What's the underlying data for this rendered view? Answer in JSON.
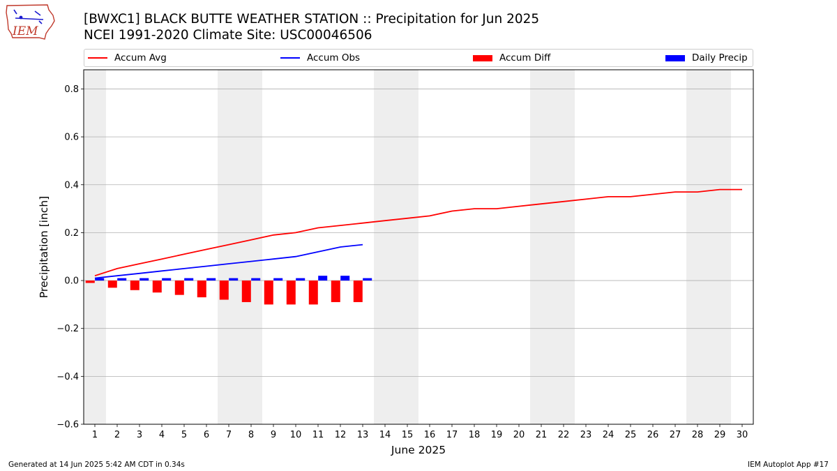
{
  "logo": {
    "text": "IEM"
  },
  "header": {
    "title": "[BWXC1] BLACK BUTTE WEATHER STATION :: Precipitation for Jun 2025",
    "subtitle": "NCEI 1991-2020 Climate Site: USC00046506"
  },
  "legend": {
    "items": [
      {
        "label": "Accum Avg",
        "color": "#ff0000",
        "kind": "line"
      },
      {
        "label": "Accum Obs",
        "color": "#0000ff",
        "kind": "line"
      },
      {
        "label": "Accum Diff",
        "color": "#ff0000",
        "kind": "bar"
      },
      {
        "label": "Daily Precip",
        "color": "#0000ff",
        "kind": "bar"
      }
    ]
  },
  "chart_data": {
    "type": "line",
    "xlabel": "June 2025",
    "ylabel": "Precipitation [inch]",
    "x": [
      1,
      2,
      3,
      4,
      5,
      6,
      7,
      8,
      9,
      10,
      11,
      12,
      13,
      14,
      15,
      16,
      17,
      18,
      19,
      20,
      21,
      22,
      23,
      24,
      25,
      26,
      27,
      28,
      29,
      30
    ],
    "xlim": [
      0.5,
      30.5
    ],
    "ylim": [
      -0.6,
      0.88
    ],
    "yticks": [
      -0.6,
      -0.4,
      -0.2,
      0.0,
      0.2,
      0.4,
      0.6,
      0.8
    ],
    "ytick_labels": [
      "−0.6",
      "−0.4",
      "−0.2",
      "0.0",
      "0.2",
      "0.4",
      "0.6",
      "0.8"
    ],
    "grid": "horizontal",
    "weekend_days": [
      1,
      7,
      8,
      14,
      15,
      21,
      22,
      28,
      29
    ],
    "series": [
      {
        "name": "Accum Avg",
        "kind": "line",
        "color": "#ff0000",
        "x": [
          1,
          2,
          3,
          4,
          5,
          6,
          7,
          8,
          9,
          10,
          11,
          12,
          13,
          14,
          15,
          16,
          17,
          18,
          19,
          20,
          21,
          22,
          23,
          24,
          25,
          26,
          27,
          28,
          29,
          30
        ],
        "values": [
          0.02,
          0.05,
          0.07,
          0.09,
          0.11,
          0.13,
          0.15,
          0.17,
          0.19,
          0.2,
          0.22,
          0.23,
          0.24,
          0.25,
          0.26,
          0.27,
          0.29,
          0.3,
          0.3,
          0.31,
          0.32,
          0.33,
          0.34,
          0.35,
          0.35,
          0.36,
          0.37,
          0.37,
          0.38,
          0.38
        ]
      },
      {
        "name": "Accum Obs",
        "kind": "line",
        "color": "#0000ff",
        "x": [
          1,
          2,
          3,
          4,
          5,
          6,
          7,
          8,
          9,
          10,
          11,
          12,
          13
        ],
        "values": [
          0.01,
          0.02,
          0.03,
          0.04,
          0.05,
          0.06,
          0.07,
          0.08,
          0.09,
          0.1,
          0.12,
          0.14,
          0.15
        ]
      },
      {
        "name": "Accum Diff",
        "kind": "bar",
        "color": "#ff0000",
        "x": [
          1,
          2,
          3,
          4,
          5,
          6,
          7,
          8,
          9,
          10,
          11,
          12,
          13
        ],
        "values": [
          -0.01,
          -0.03,
          -0.04,
          -0.05,
          -0.06,
          -0.07,
          -0.08,
          -0.09,
          -0.1,
          -0.1,
          -0.1,
          -0.09,
          -0.09
        ]
      },
      {
        "name": "Daily Precip",
        "kind": "bar",
        "color": "#0000ff",
        "x": [
          1,
          2,
          3,
          4,
          5,
          6,
          7,
          8,
          9,
          10,
          11,
          12,
          13
        ],
        "values": [
          0.01,
          0.01,
          0.01,
          0.01,
          0.01,
          0.01,
          0.01,
          0.01,
          0.01,
          0.01,
          0.02,
          0.02,
          0.01
        ]
      }
    ]
  },
  "footer": {
    "left": "Generated at 14 Jun 2025 5:42 AM CDT in 0.34s",
    "right": "IEM Autoplot App #17"
  }
}
